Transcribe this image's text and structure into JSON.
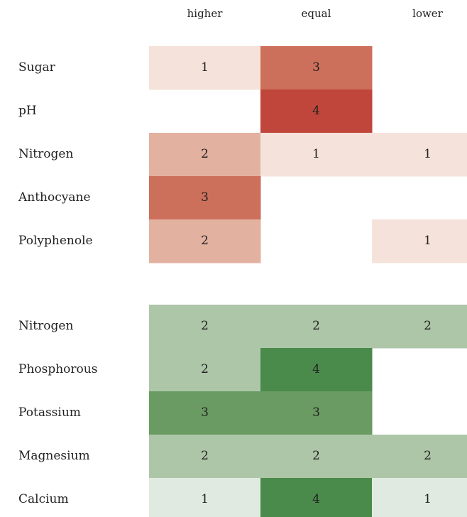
{
  "chart_data": {
    "type": "heatmap",
    "columns": [
      "higher",
      "equal",
      "lower"
    ],
    "zlim": [
      1,
      4
    ],
    "groups": [
      {
        "rows": [
          "Sugar",
          "pH",
          "Nitrogen",
          "Anthocyane",
          "Polyphenole"
        ],
        "values": [
          [
            1,
            3,
            null
          ],
          [
            null,
            4,
            null
          ],
          [
            2,
            1,
            1
          ],
          [
            3,
            null,
            null
          ],
          [
            2,
            null,
            1
          ]
        ],
        "colors": [
          "#f5e3db",
          "#e3b1a0",
          "#cd705b",
          "#c0463b"
        ]
      },
      {
        "rows": [
          "Nitrogen",
          "Phosphorous",
          "Potassium",
          "Magnesium",
          "Calcium"
        ],
        "values": [
          [
            2,
            2,
            2
          ],
          [
            2,
            4,
            null
          ],
          [
            3,
            3,
            null
          ],
          [
            2,
            2,
            2
          ],
          [
            1,
            4,
            1
          ]
        ],
        "colors": [
          "#e1eae0",
          "#adc6a8",
          "#6a9b62",
          "#4a8a4b"
        ]
      }
    ]
  }
}
